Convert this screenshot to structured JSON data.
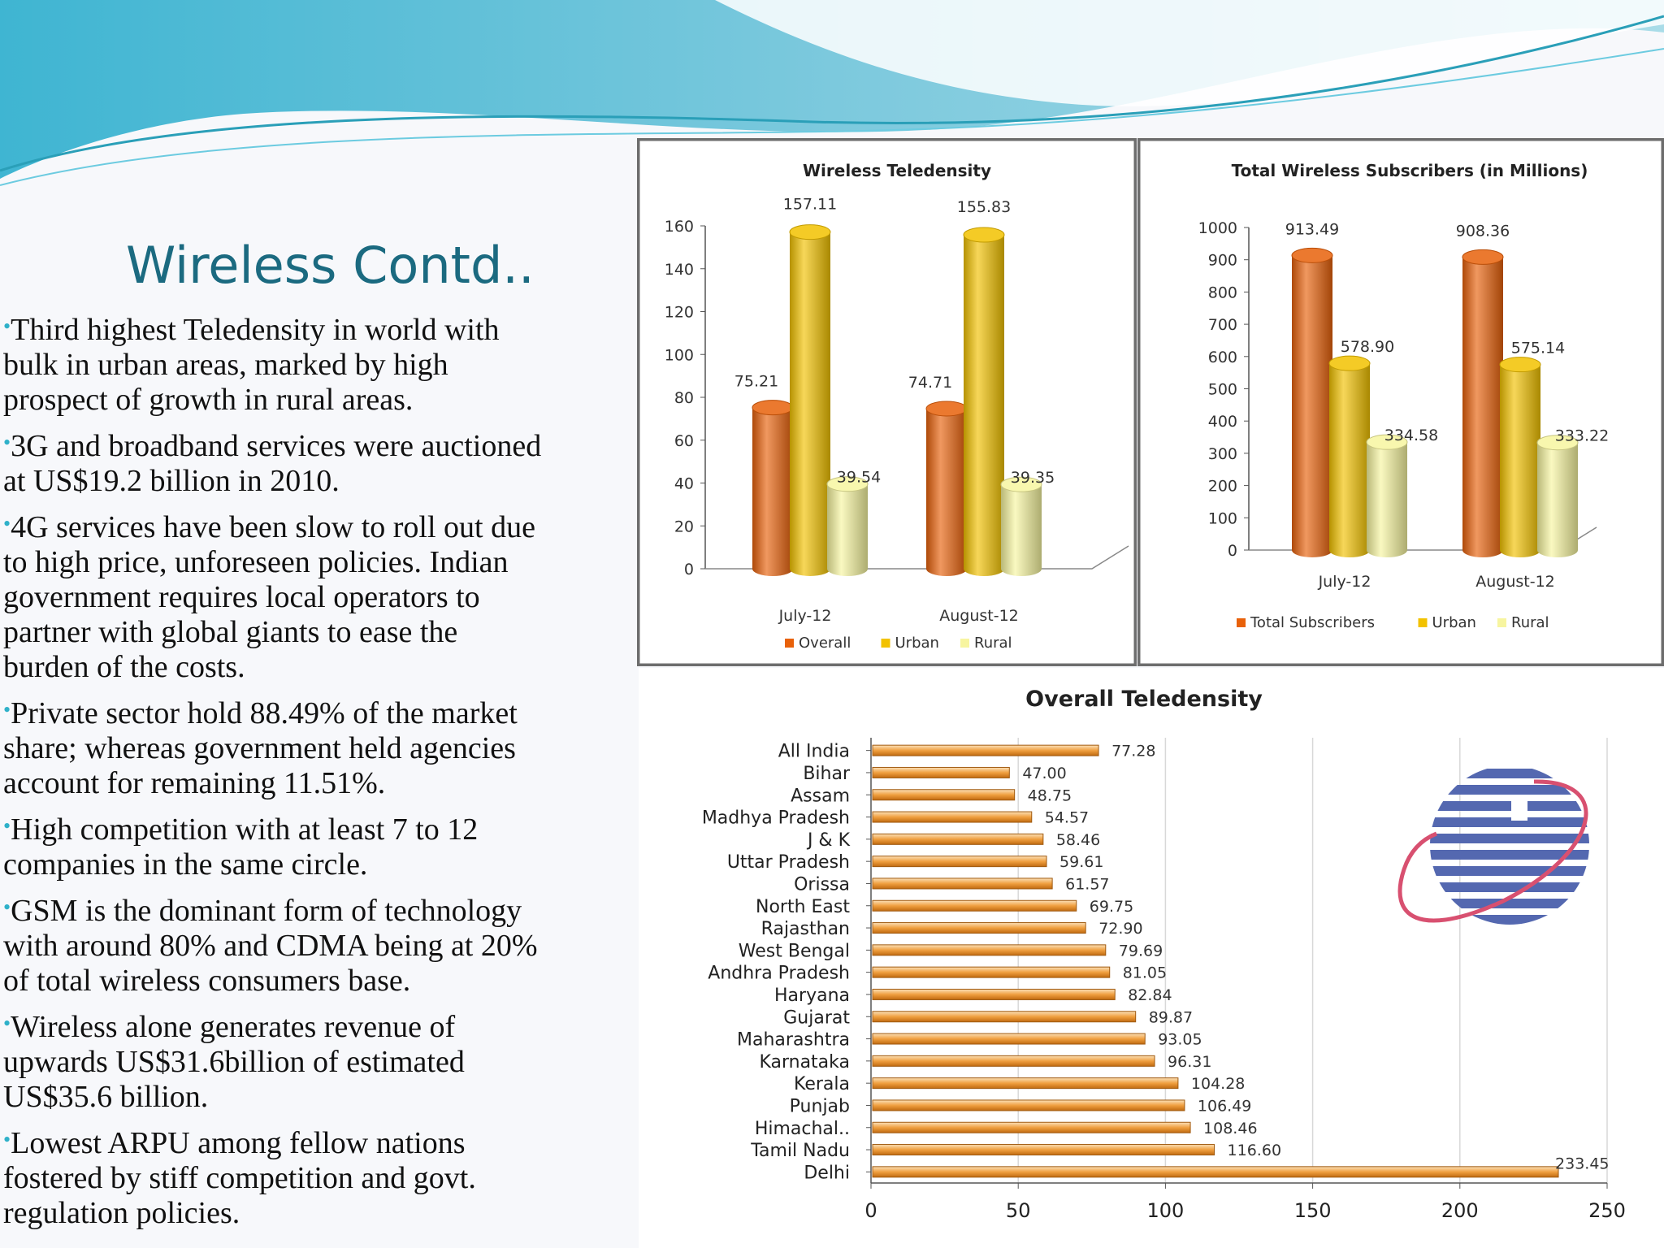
{
  "slide": {
    "title": "Wireless Contd..",
    "bullets": [
      "Third highest Teledensity in world with bulk in urban areas, marked by high prospect of growth in rural areas.",
      "3G and broadband services were auctioned at US$19.2 billion in 2010.",
      "4G services have been slow to roll out due to high price, unforeseen policies. Indian government requires local operators to partner with global giants to ease the burden of the costs.",
      "Private sector hold 88.49% of the market share; whereas government held agencies account for remaining 11.51%.",
      "High competition with at least 7 to 12 companies in the same circle.",
      "GSM is the dominant form of technology with around 80% and CDMA being at 20% of total wireless consumers base.",
      "Wireless alone generates revenue of upwards US$31.6billion of estimated US$35.6 billion.",
      "Lowest ARPU among fellow nations fostered by stiff competition and govt. regulation policies."
    ],
    "bullet_lines": [
      [
        "Third highest Teledensity in world with",
        "bulk in urban areas, marked by high",
        "prospect of growth in rural areas."
      ],
      [
        "3G and broadband services were auctioned",
        "at US$19.2 billion in 2010."
      ],
      [
        "4G services have been slow to roll out due",
        "to high price, unforeseen policies. Indian",
        "government requires local operators to",
        "partner with global giants to ease the",
        "burden of the costs."
      ],
      [
        "Private sector hold 88.49% of the market",
        "share; whereas government held agencies",
        "account for remaining 11.51%."
      ],
      [
        "High competition with at least 7 to 12",
        "companies in the same circle."
      ],
      [
        "GSM is the dominant form of technology",
        "with around 80% and CDMA being at 20%",
        "of total wireless consumers base."
      ],
      [
        "Wireless alone generates revenue of",
        "upwards US$31.6billion of estimated",
        "US$35.6 billion."
      ],
      [
        "Lowest ARPU among fellow nations",
        "fostered by stiff competition and govt.",
        "regulation policies."
      ]
    ]
  },
  "colors": {
    "overall": "#e8610a",
    "urban": "#f2c200",
    "rural": "#f7f5a0",
    "bar_orange": "#f0a040",
    "title": "#1b6a80",
    "bullet": "#2fb1c9",
    "logo_blue": "#5468b0",
    "logo_ring": "#d85070"
  },
  "logo": {
    "icon": "telecom-globe-logo-icon"
  },
  "chart_data": [
    {
      "type": "bar",
      "title": "Wireless Teledensity",
      "categories": [
        "July-12",
        "August-12"
      ],
      "series": [
        {
          "name": "Overall",
          "values": [
            75.21,
            74.71
          ]
        },
        {
          "name": "Urban",
          "values": [
            157.11,
            155.83
          ]
        },
        {
          "name": "Rural",
          "values": [
            39.54,
            39.35
          ]
        }
      ],
      "value_labels": [
        [
          "75.21",
          "74.71"
        ],
        [
          "157.11",
          "155.83"
        ],
        [
          "39.54",
          "39.35"
        ]
      ],
      "ylim": [
        0,
        160
      ],
      "yticks": [
        0,
        20,
        40,
        60,
        80,
        100,
        120,
        140,
        160
      ],
      "legend": "bottom",
      "style": "3d-cylinder"
    },
    {
      "type": "bar",
      "title": "Total Wireless Subscribers (in Millions)",
      "categories": [
        "July-12",
        "August-12"
      ],
      "series": [
        {
          "name": "Total Subscribers",
          "values": [
            913.49,
            908.36
          ]
        },
        {
          "name": "Urban",
          "values": [
            578.9,
            575.14
          ]
        },
        {
          "name": "Rural",
          "values": [
            334.58,
            333.22
          ]
        }
      ],
      "value_labels": [
        [
          "913.49",
          "908.36"
        ],
        [
          "578.90",
          "575.14"
        ],
        [
          "334.58",
          "333.22"
        ]
      ],
      "ylim": [
        0,
        1000
      ],
      "yticks": [
        0,
        100,
        200,
        300,
        400,
        500,
        600,
        700,
        800,
        900,
        1000
      ],
      "legend": "bottom",
      "style": "3d-cylinder"
    },
    {
      "type": "bar",
      "orientation": "horizontal",
      "title": "Overall Teledensity",
      "categories": [
        "All India",
        "Bihar",
        "Assam",
        "Madhya Pradesh",
        "J & K",
        "Uttar Pradesh",
        "Orissa",
        "North East",
        "Rajasthan",
        "West Bengal",
        "Andhra Pradesh",
        "Haryana",
        "Gujarat",
        "Maharashtra",
        "Karnataka",
        "Kerala",
        "Punjab",
        "Himachal..",
        "Tamil Nadu",
        "Delhi"
      ],
      "values": [
        77.28,
        47.0,
        48.75,
        54.57,
        58.46,
        59.61,
        61.57,
        69.75,
        72.9,
        79.69,
        81.05,
        82.84,
        89.87,
        93.05,
        96.31,
        104.28,
        106.49,
        108.46,
        116.6,
        233.45
      ],
      "value_labels": [
        "77.28",
        "47.00",
        "48.75",
        "54.57",
        "58.46",
        "59.61",
        "61.57",
        "69.75",
        "72.90",
        "79.69",
        "81.05",
        "82.84",
        "89.87",
        "93.05",
        "96.31",
        "104.28",
        "106.49",
        "108.46",
        "116.60",
        "233.45"
      ],
      "xlim": [
        0,
        250
      ],
      "xticks": [
        0,
        50,
        100,
        150,
        200,
        250
      ],
      "grid": true
    }
  ]
}
